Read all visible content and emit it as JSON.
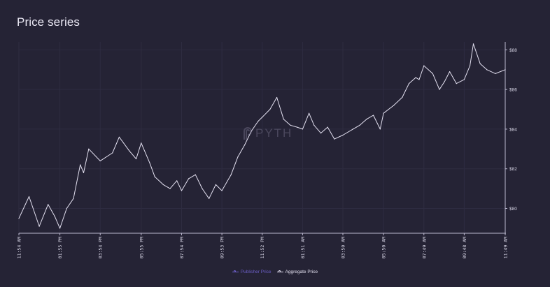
{
  "title": "Price series",
  "watermark": {
    "text": "PYTH",
    "icon": "pyth-logo-icon"
  },
  "legend": [
    {
      "label": "Publisher Price",
      "color": "#6c5fc7"
    },
    {
      "label": "Aggregate Price",
      "color": "#e4e1f1"
    }
  ],
  "colors": {
    "background": "#252335",
    "grid": "#2e2c41",
    "axis": "#bcb8cf",
    "line": "#e4e1f1"
  },
  "chart_data": {
    "type": "line",
    "title": "",
    "xlabel": "",
    "ylabel": "",
    "ylim": [
      78.75,
      88.4
    ],
    "grid": true,
    "legend_position": "bottom-center",
    "y_axis_side": "right",
    "yticks": [
      80,
      82,
      84,
      86,
      88
    ],
    "ytick_labels": [
      "$80",
      "$82",
      "$84",
      "$86",
      "$88"
    ],
    "xticks": [
      "11:54 AM",
      "01:55 PM",
      "03:54 PM",
      "05:55 PM",
      "07:54 PM",
      "09:53 PM",
      "11:52 PM",
      "01:51 AM",
      "03:50 AM",
      "05:50 AM",
      "07:49 AM",
      "09:48 AM",
      "11:49 AM"
    ],
    "series": [
      {
        "name": "Aggregate Price",
        "x": [
          "11:54 AM",
          "12:24 PM",
          "12:54 PM",
          "01:20 PM",
          "01:40 PM",
          "01:55 PM",
          "02:15 PM",
          "02:35 PM",
          "02:55 PM",
          "03:05 PM",
          "03:20 PM",
          "03:54 PM",
          "04:30 PM",
          "04:50 PM",
          "05:20 PM",
          "05:40 PM",
          "05:55 PM",
          "06:20 PM",
          "06:35 PM",
          "07:00 PM",
          "07:20 PM",
          "07:40 PM",
          "07:54 PM",
          "08:15 PM",
          "08:35 PM",
          "08:55 PM",
          "09:15 PM",
          "09:35 PM",
          "09:53 PM",
          "10:20 PM",
          "10:40 PM",
          "11:00 PM",
          "11:20 PM",
          "11:40 PM",
          "11:52 PM",
          "12:15 AM",
          "12:35 AM",
          "12:55 AM",
          "01:15 AM",
          "01:35 AM",
          "01:51 AM",
          "02:10 AM",
          "02:25 AM",
          "02:45 AM",
          "03:05 AM",
          "03:25 AM",
          "03:50 AM",
          "04:20 AM",
          "04:40 AM",
          "05:00 AM",
          "05:20 AM",
          "05:40 AM",
          "05:50 AM",
          "06:20 AM",
          "06:45 AM",
          "07:05 AM",
          "07:25 AM",
          "07:35 AM",
          "07:49 AM",
          "08:15 AM",
          "08:35 AM",
          "08:50 AM",
          "09:05 AM",
          "09:25 AM",
          "09:48 AM",
          "10:05 AM",
          "10:15 AM",
          "10:35 AM",
          "10:55 AM",
          "11:20 AM",
          "11:49 AM"
        ],
        "values": [
          79.5,
          80.6,
          79.1,
          80.2,
          79.6,
          79.0,
          80.0,
          80.5,
          82.2,
          81.8,
          83.0,
          82.4,
          82.8,
          83.6,
          82.9,
          82.5,
          83.3,
          82.3,
          81.6,
          81.2,
          81.0,
          81.4,
          80.9,
          81.5,
          81.7,
          81.0,
          80.5,
          81.2,
          80.9,
          81.7,
          82.6,
          83.2,
          83.9,
          84.4,
          84.6,
          85.0,
          85.6,
          84.5,
          84.2,
          84.1,
          84.0,
          84.8,
          84.2,
          83.8,
          84.1,
          83.5,
          83.7,
          84.0,
          84.2,
          84.5,
          84.7,
          84.0,
          84.8,
          85.2,
          85.6,
          86.3,
          86.6,
          86.5,
          87.2,
          86.8,
          86.0,
          86.4,
          86.9,
          86.3,
          86.5,
          87.2,
          88.3,
          87.3,
          87.0,
          86.8,
          87.0
        ]
      }
    ]
  }
}
